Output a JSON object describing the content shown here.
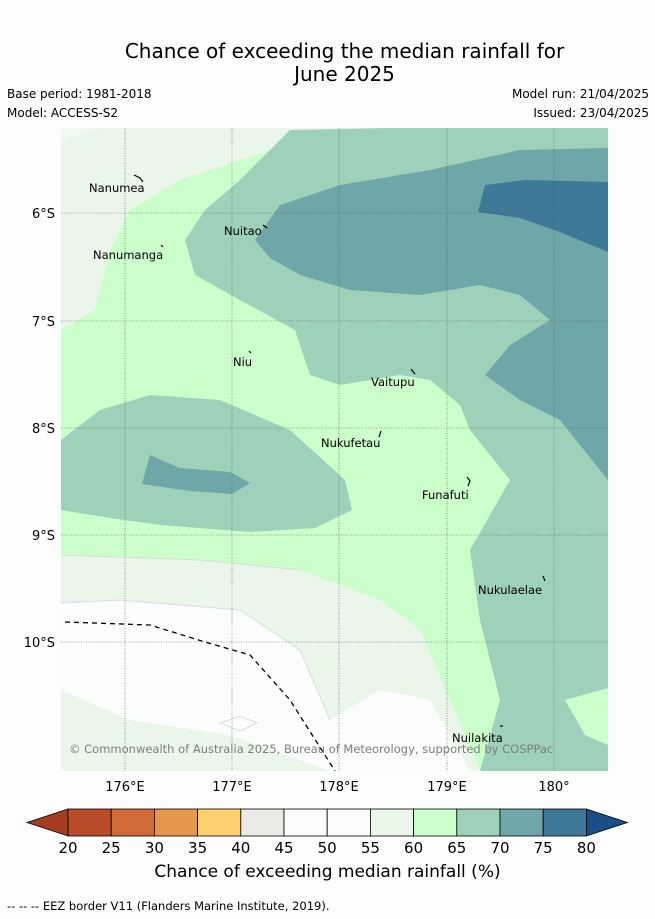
{
  "title": {
    "line1": "Chance of exceeding the median rainfall for",
    "line2": "June 2025"
  },
  "meta": {
    "base_period": "Base period: 1981-2018",
    "model": "Model: ACCESS-S2",
    "model_run": "Model run: 21/04/2025",
    "issued": "Issued: 23/04/2025"
  },
  "map": {
    "lat_ticks": [
      "6°S",
      "7°S",
      "8°S",
      "9°S",
      "10°S"
    ],
    "lon_ticks": [
      "176°E",
      "177°E",
      "178°E",
      "179°E",
      "180°"
    ],
    "islands": [
      "Nanumea",
      "Nanumanga",
      "Nuitao",
      "Niu",
      "Vaitupu",
      "Nukufetau",
      "Funafuti",
      "Nukulaelae",
      "Nuilakita"
    ],
    "copyright": "© Commonwealth of Australia 2025, Bureau of Meteorology, supported by COSPPac"
  },
  "legend": {
    "levels": [
      "20",
      "25",
      "30",
      "35",
      "40",
      "45",
      "50",
      "55",
      "60",
      "65",
      "70",
      "75",
      "80"
    ],
    "colors": [
      "#a53c22",
      "#b84c2a",
      "#d06a36",
      "#e5974c",
      "#fdd06f",
      "#ebe9e6",
      "#fbfdfc",
      "#fbfdfc",
      "#ebf6ea",
      "#ccfecb",
      "#9ed1ba",
      "#6fa6a7",
      "#3f7998",
      "#1b4d87"
    ],
    "title": "Chance of exceeding median rainfall (%)"
  },
  "footer": {
    "eez_note": "--  --  -- EEZ border V11 (Flanders Marine Institute, 2019)."
  }
}
